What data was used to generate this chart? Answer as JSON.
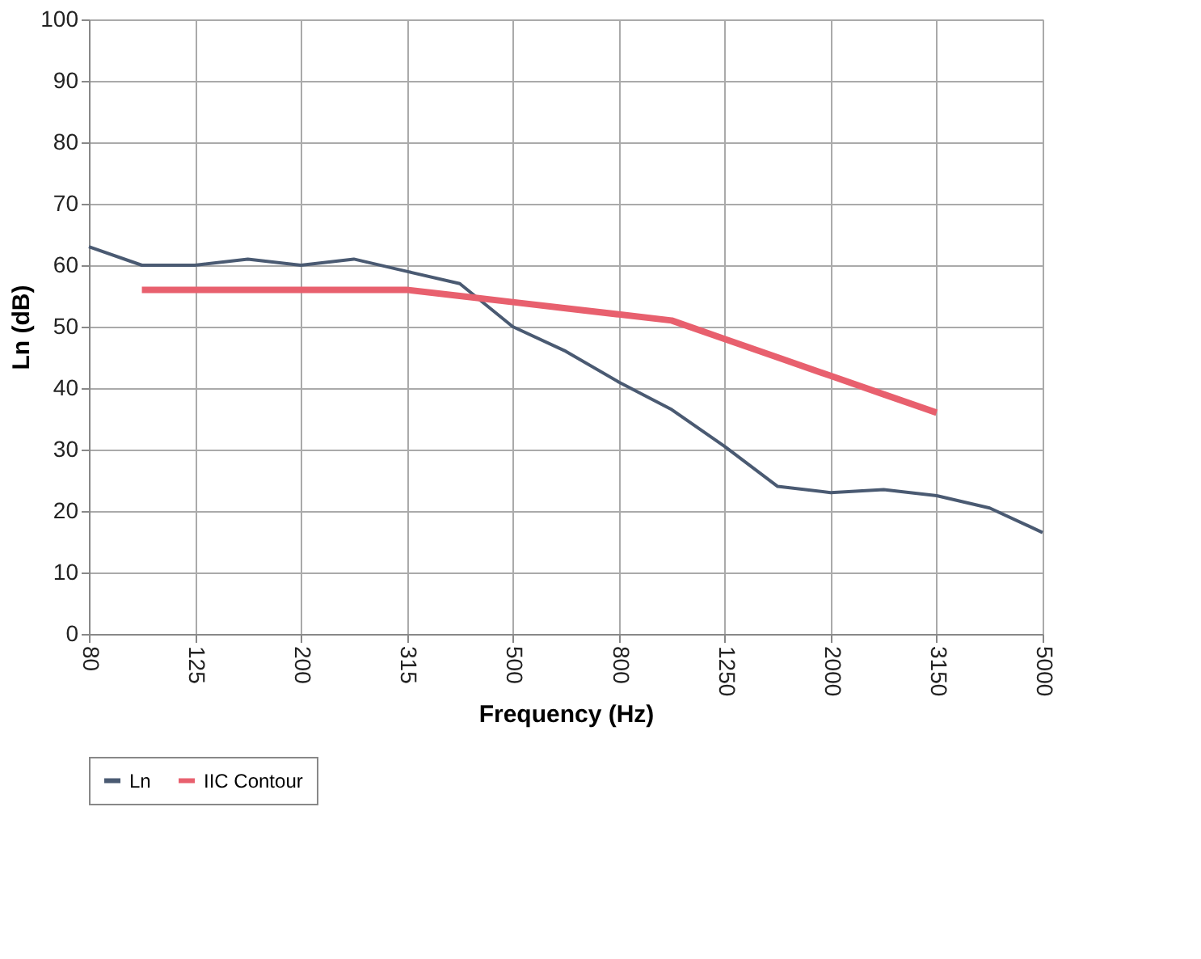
{
  "chart_data": {
    "type": "line",
    "xlabel": "Frequency (Hz)",
    "ylabel": "Ln (dB)",
    "categories": [
      "80",
      null,
      "125",
      null,
      "200",
      null,
      "315",
      null,
      "500",
      null,
      "800",
      null,
      "1250",
      null,
      "2000",
      null,
      "3150",
      null,
      "5000"
    ],
    "series": [
      {
        "name": "Ln",
        "color": "#4a5a72",
        "values": [
          63,
          60,
          60,
          61,
          60,
          61,
          59,
          57,
          50,
          46,
          41,
          36.5,
          30.5,
          24,
          23,
          23.5,
          22.5,
          20.5,
          16.5
        ]
      },
      {
        "name": "IIC Contour",
        "color": "#e8606e",
        "values": [
          null,
          56,
          56,
          56,
          56,
          56,
          56,
          55,
          54,
          53,
          52,
          51,
          48,
          45,
          42,
          39,
          36,
          null,
          null
        ]
      }
    ],
    "ylim": [
      0,
      100
    ],
    "yticks": [
      0,
      10,
      20,
      30,
      40,
      50,
      60,
      70,
      80,
      90,
      100
    ],
    "grid": true,
    "legend": "bottom",
    "marker": "none",
    "line_style": "solid"
  }
}
